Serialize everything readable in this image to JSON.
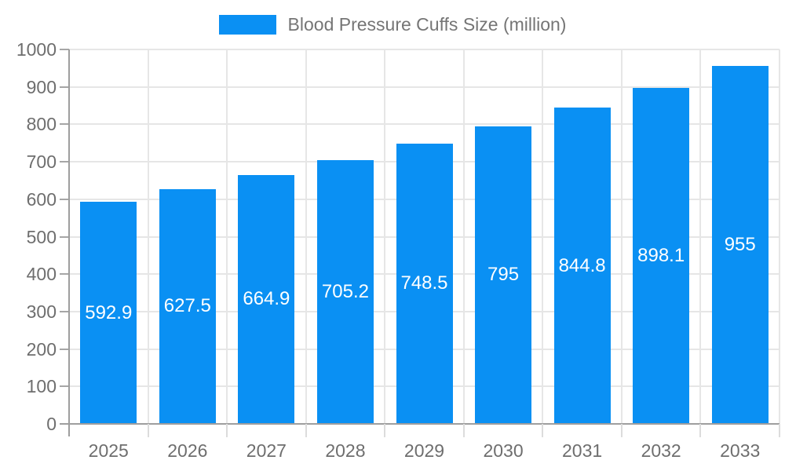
{
  "chart_data": {
    "type": "bar",
    "title": "Blood Pressure Cuffs Size (million)",
    "categories": [
      "2025",
      "2026",
      "2027",
      "2028",
      "2029",
      "2030",
      "2031",
      "2032",
      "2033"
    ],
    "values": [
      592.9,
      627.5,
      664.9,
      705.2,
      748.5,
      795,
      844.8,
      898.1,
      955
    ],
    "value_labels": [
      "592.9",
      "627.5",
      "664.9",
      "705.2",
      "748.5",
      "795",
      "844.8",
      "898.1",
      "955"
    ],
    "xlabel": "",
    "ylabel": "",
    "ylim": [
      0,
      1000
    ],
    "yticks": [
      0,
      100,
      200,
      300,
      400,
      500,
      600,
      700,
      800,
      900,
      1000
    ],
    "grid": true,
    "legend_position": "top",
    "colors": {
      "bar": "#0a90f3",
      "bar_label": "#ffffff",
      "axis_text": "#6e6e6e",
      "legend_text": "#757575",
      "axis_line": "#9e9e9e",
      "tick": "#a6a6a6",
      "gridline": "#e6e6e6",
      "minor_tick": "#dcdcdc",
      "background": "#ffffff"
    }
  }
}
